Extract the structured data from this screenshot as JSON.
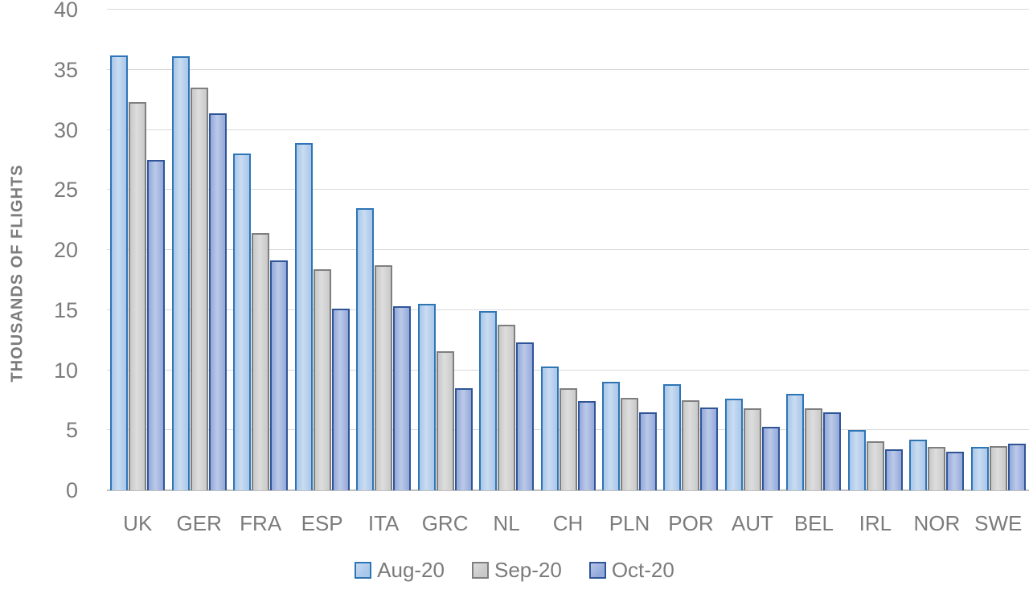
{
  "chart_data": {
    "type": "bar",
    "title": "",
    "xlabel": "",
    "ylabel": "THOUSANDS OF FLIGHTS",
    "ylim": [
      0,
      40
    ],
    "ytick_step": 5,
    "grid": true,
    "legend_position": "bottom",
    "categories": [
      "UK",
      "GER",
      "FRA",
      "ESP",
      "ITA",
      "GRC",
      "NL",
      "CH",
      "PLN",
      "POR",
      "AUT",
      "BEL",
      "IRL",
      "NOR",
      "SWE"
    ],
    "series": [
      {
        "name": "Aug-20",
        "fill": "#a9c7e9",
        "border": "#2e75b6",
        "values": [
          36.2,
          36.1,
          28.0,
          28.9,
          23.5,
          15.5,
          14.9,
          10.3,
          9.0,
          8.8,
          7.6,
          8.0,
          5.0,
          4.2,
          3.6
        ]
      },
      {
        "name": "Sep-20",
        "fill": "#c9c9c9",
        "border": "#7f7f7f",
        "values": [
          32.3,
          33.5,
          21.4,
          18.4,
          18.7,
          11.6,
          13.8,
          8.5,
          7.7,
          7.5,
          6.8,
          6.8,
          4.1,
          3.6,
          3.7
        ]
      },
      {
        "name": "Oct-20",
        "fill": "#93a9db",
        "border": "#2f5597",
        "values": [
          27.5,
          31.4,
          19.1,
          15.1,
          15.3,
          8.5,
          12.3,
          7.4,
          6.5,
          6.9,
          5.3,
          6.5,
          3.4,
          3.2,
          3.9
        ]
      }
    ]
  },
  "axis": {
    "yticks": [
      40,
      35,
      30,
      25,
      20,
      15,
      10,
      5,
      0
    ]
  },
  "style_colors": {
    "gridline": "#d9d9d9",
    "axis_line": "#bfbfbf",
    "text": "#7b7b7b"
  }
}
